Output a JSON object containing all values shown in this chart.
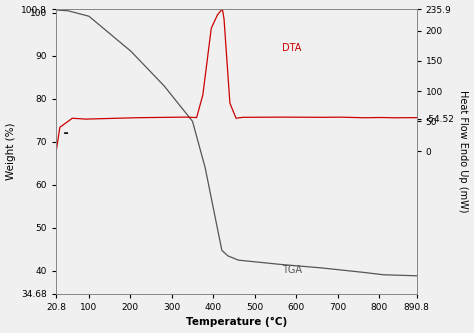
{
  "title": "",
  "xlabel": "Temperature (°C)",
  "ylabel_left": "Weight (%)",
  "ylabel_right": "Heat Flow Endo Up (mW)",
  "xlim": [
    20.8,
    890.8
  ],
  "ylim_left": [
    34.68,
    100.8
  ],
  "ylim_right": [
    235.9,
    -54.52
  ],
  "tga_color": "#555555",
  "dta_color": "#cc0000",
  "background_color": "#f0f0f0",
  "label_DTA": "DTA",
  "label_TGA": "TGA",
  "legend_line_color": "#000000"
}
